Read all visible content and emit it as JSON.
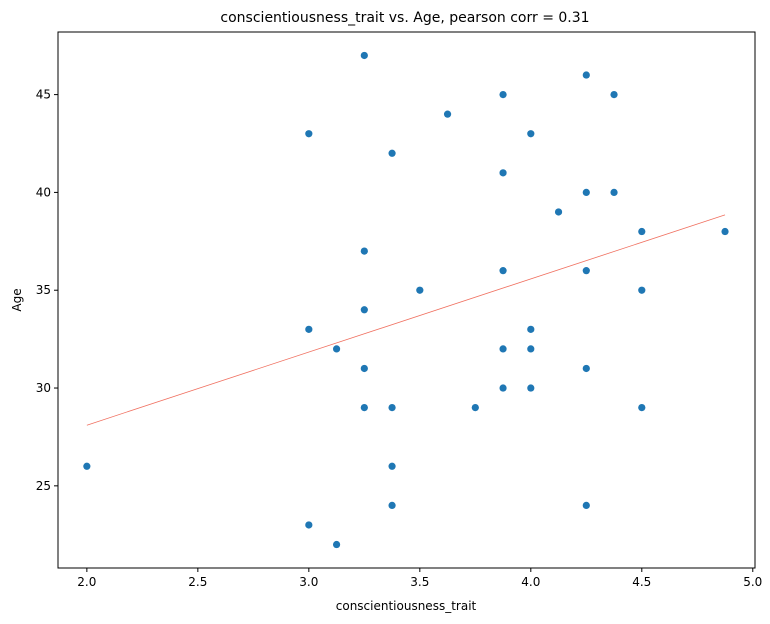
{
  "chart_data": {
    "type": "scatter",
    "title": "conscientiousness_trait vs. Age, pearson corr = 0.31",
    "xlabel": "conscientiousness_trait",
    "ylabel": "Age",
    "xlim": [
      1.87,
      5.01
    ],
    "ylim": [
      20.8,
      48.2
    ],
    "xticks": [
      2.0,
      2.5,
      3.0,
      3.5,
      4.0,
      4.5,
      5.0
    ],
    "xtick_labels": [
      "2.0",
      "2.5",
      "3.0",
      "3.5",
      "4.0",
      "4.5",
      "5.0"
    ],
    "yticks": [
      25,
      30,
      35,
      40,
      45
    ],
    "ytick_labels": [
      "25",
      "30",
      "35",
      "40",
      "45"
    ],
    "grid": false,
    "legend": "none",
    "point_color": "#1f77b4",
    "trend_color": "#f07060",
    "points": [
      {
        "x": 2.0,
        "y": 26
      },
      {
        "x": 3.0,
        "y": 43
      },
      {
        "x": 3.0,
        "y": 33
      },
      {
        "x": 3.0,
        "y": 23
      },
      {
        "x": 3.125,
        "y": 32
      },
      {
        "x": 3.125,
        "y": 22
      },
      {
        "x": 3.25,
        "y": 47
      },
      {
        "x": 3.25,
        "y": 37
      },
      {
        "x": 3.25,
        "y": 34
      },
      {
        "x": 3.25,
        "y": 31
      },
      {
        "x": 3.25,
        "y": 29
      },
      {
        "x": 3.375,
        "y": 42
      },
      {
        "x": 3.375,
        "y": 29
      },
      {
        "x": 3.375,
        "y": 26
      },
      {
        "x": 3.375,
        "y": 24
      },
      {
        "x": 3.5,
        "y": 35
      },
      {
        "x": 3.625,
        "y": 44
      },
      {
        "x": 3.75,
        "y": 29
      },
      {
        "x": 3.875,
        "y": 45
      },
      {
        "x": 3.875,
        "y": 41
      },
      {
        "x": 3.875,
        "y": 36
      },
      {
        "x": 3.875,
        "y": 32
      },
      {
        "x": 3.875,
        "y": 30
      },
      {
        "x": 4.0,
        "y": 43
      },
      {
        "x": 4.0,
        "y": 33
      },
      {
        "x": 4.0,
        "y": 32
      },
      {
        "x": 4.0,
        "y": 30
      },
      {
        "x": 4.125,
        "y": 39
      },
      {
        "x": 4.25,
        "y": 46
      },
      {
        "x": 4.25,
        "y": 40
      },
      {
        "x": 4.25,
        "y": 36
      },
      {
        "x": 4.25,
        "y": 31
      },
      {
        "x": 4.25,
        "y": 24
      },
      {
        "x": 4.375,
        "y": 45
      },
      {
        "x": 4.375,
        "y": 40
      },
      {
        "x": 4.5,
        "y": 38
      },
      {
        "x": 4.5,
        "y": 35
      },
      {
        "x": 4.5,
        "y": 29
      },
      {
        "x": 4.875,
        "y": 38
      }
    ],
    "trend_line": [
      {
        "x": 2.0,
        "y": 28.1
      },
      {
        "x": 4.875,
        "y": 38.85
      }
    ]
  }
}
